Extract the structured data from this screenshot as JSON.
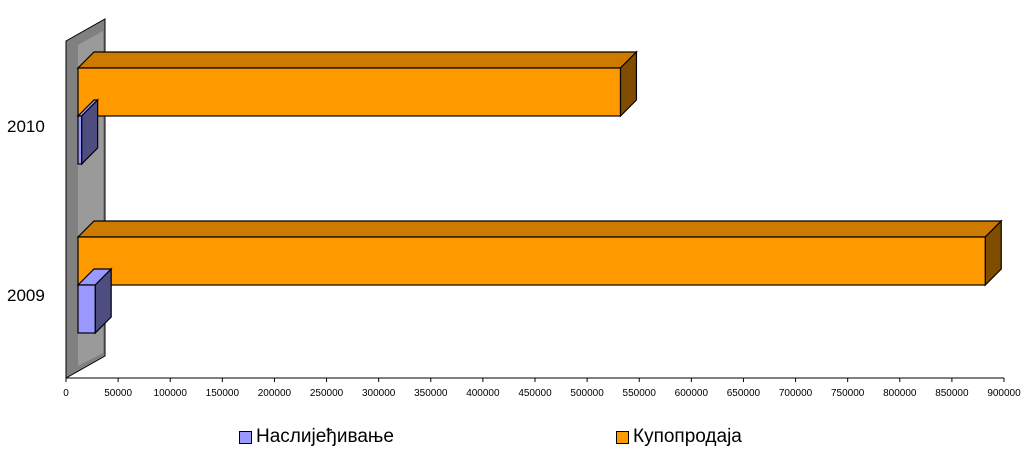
{
  "chart_data": {
    "type": "bar",
    "orientation": "horizontal",
    "three_d": true,
    "categories": [
      "2010",
      "2009"
    ],
    "series": [
      {
        "name": "Наслијеђивање",
        "values": [
          15000,
          28000
        ],
        "color": "#9999ff",
        "side_color": "#4d4d80",
        "top_color": "#9999ff"
      },
      {
        "name": "Купопродаја",
        "values": [
          532000,
          882000
        ],
        "color": "#ff9900",
        "side_color": "#804d00",
        "top_color": "#cc7a00"
      }
    ],
    "xlim": [
      0,
      900000
    ],
    "x_ticks": [
      "0",
      "50000",
      "100000",
      "150000",
      "200000",
      "250000",
      "300000",
      "350000",
      "400000",
      "450000",
      "500000",
      "550000",
      "600000",
      "650000",
      "700000",
      "750000",
      "800000",
      "850000",
      "900000"
    ],
    "legend_position": "bottom",
    "wall_color": "#808080",
    "grid": false
  }
}
